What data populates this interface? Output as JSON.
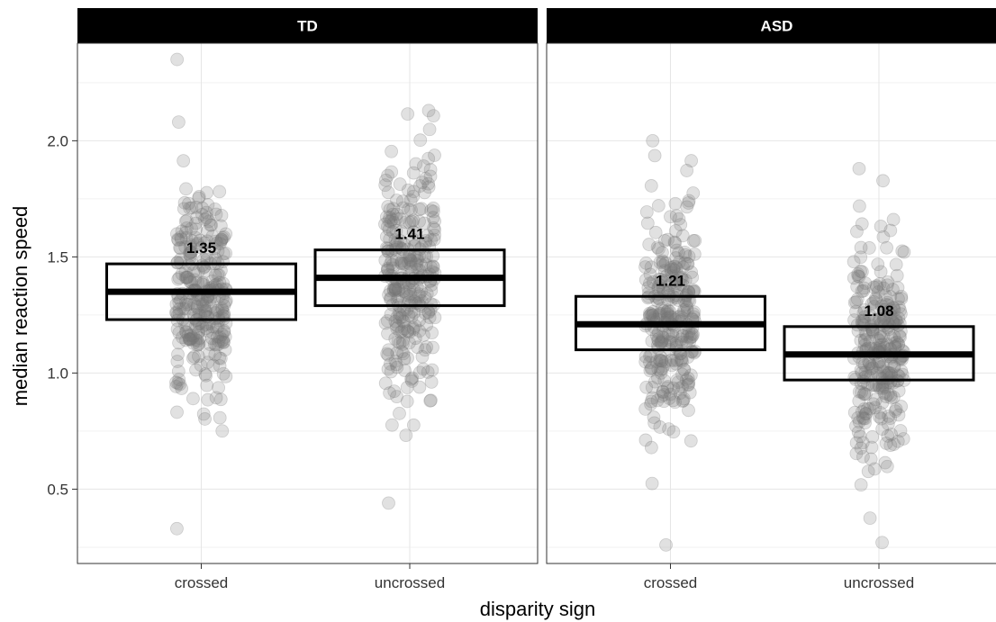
{
  "chart_data": {
    "type": "scatter",
    "panels": [
      {
        "title": "TD",
        "groups": [
          {
            "category": "crossed",
            "median": 1.35,
            "q1": 1.23,
            "q3": 1.47,
            "median_label": "1.35",
            "min": 0.33,
            "max": 2.35
          },
          {
            "category": "uncrossed",
            "median": 1.41,
            "q1": 1.29,
            "q3": 1.53,
            "median_label": "1.41",
            "min": 0.44,
            "max": 2.13
          }
        ]
      },
      {
        "title": "ASD",
        "groups": [
          {
            "category": "crossed",
            "median": 1.21,
            "q1": 1.1,
            "q3": 1.33,
            "median_label": "1.21",
            "min": 0.26,
            "max": 2.0
          },
          {
            "category": "uncrossed",
            "median": 1.08,
            "q1": 0.97,
            "q3": 1.2,
            "median_label": "1.08",
            "min": 0.27,
            "max": 1.88
          }
        ]
      }
    ],
    "categories": [
      "crossed",
      "uncrossed"
    ],
    "xlabel": "disparity sign",
    "ylabel": "median reaction speed",
    "yticks": [
      0.5,
      1.0,
      1.5,
      2.0
    ],
    "ytick_labels": [
      "0.5",
      "1.0",
      "1.5",
      "2.0"
    ],
    "ylim": [
      0.18,
      2.42
    ],
    "grid": true,
    "point_color": "#777777",
    "box_color": "#000000",
    "strip_color": "#000000"
  }
}
